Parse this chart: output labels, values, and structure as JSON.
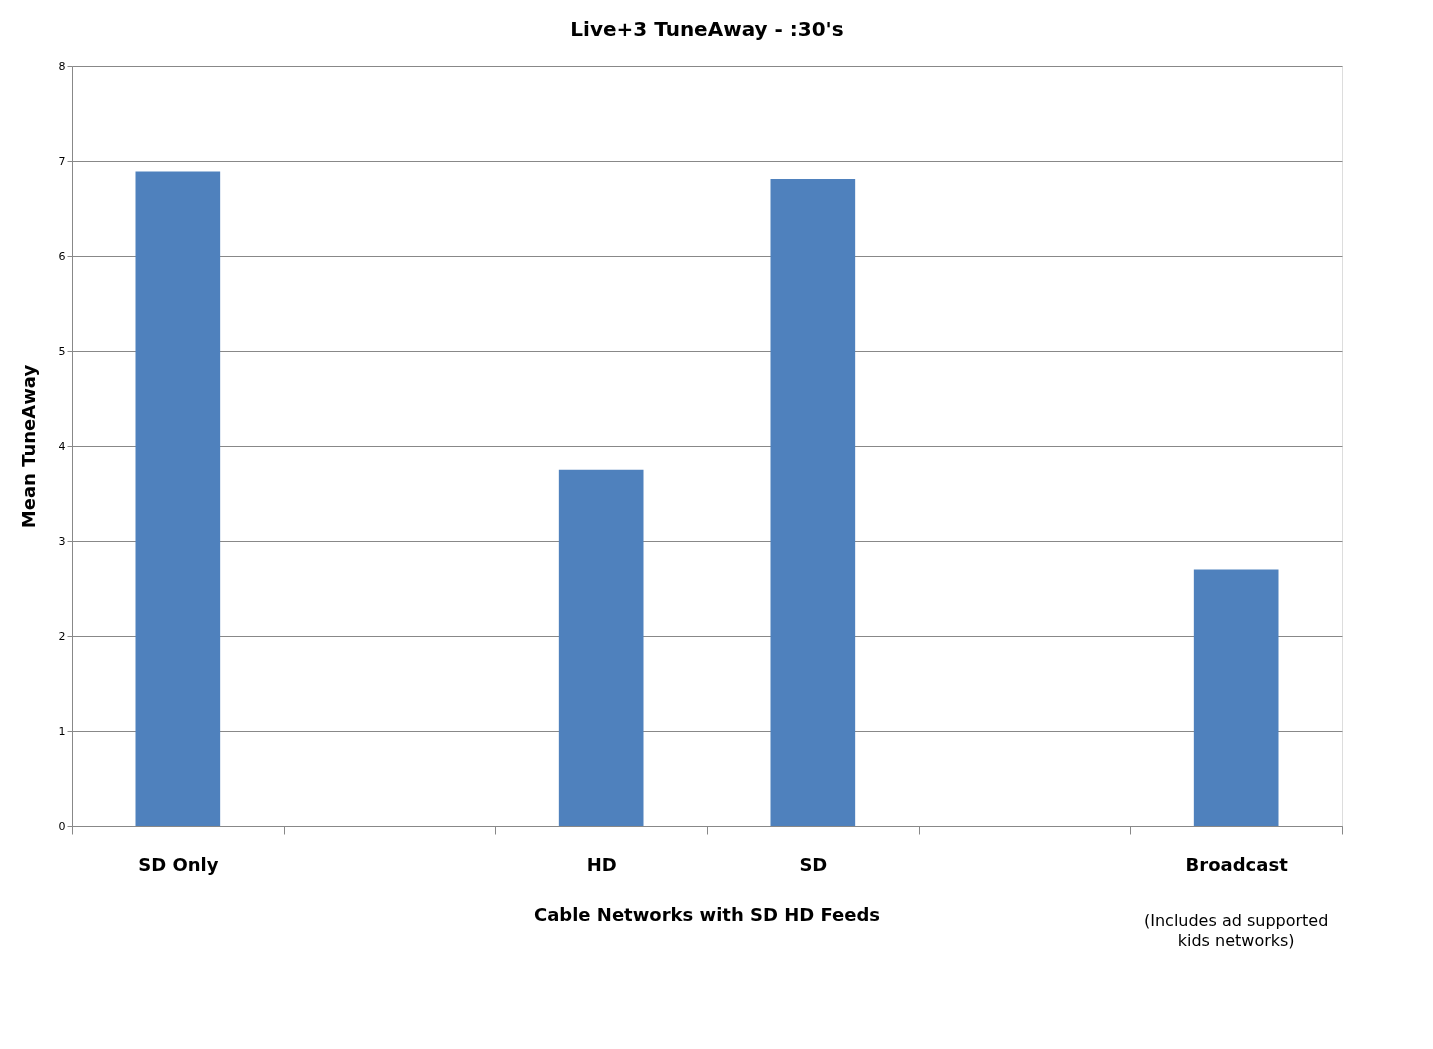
{
  "chart_data": {
    "type": "bar",
    "title": "Live+3 TuneAway - :30's",
    "ylabel": "Mean TuneAway",
    "categories": [
      "SD Only",
      null,
      "HD",
      "SD",
      null,
      "Broadcast"
    ],
    "values": [
      6.89,
      null,
      3.75,
      6.81,
      null,
      2.7
    ],
    "color": "#4f81bd",
    "ylim": [
      0,
      8
    ],
    "yticks": [
      0,
      1,
      2,
      3,
      4,
      5,
      6,
      7,
      8
    ],
    "grid": "y",
    "annotations": [
      "Cable Networks with SD  HD Feeds",
      "(Includes ad supported kids networks)"
    ]
  }
}
